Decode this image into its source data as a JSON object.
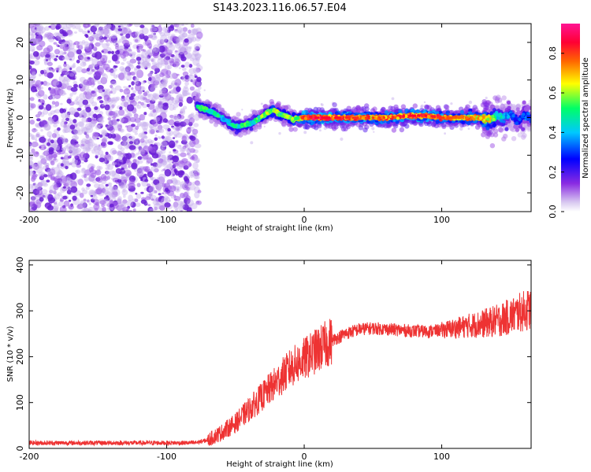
{
  "title": "S143.2023.116.06.57.E04",
  "colors": {
    "snr_line": "#ee3333",
    "spectrogram_scatter": "#7a2be0",
    "colormap": [
      "#ffffff",
      "#d8c8f0",
      "#8a2be2",
      "#0000ff",
      "#00c8ff",
      "#00ff66",
      "#ffff00",
      "#ff6600",
      "#ff0033",
      "#ff1493"
    ]
  },
  "chart_data": [
    {
      "type": "heatmap",
      "xlabel": "Height of straight line (km)",
      "ylabel": "Frequency (Hz)",
      "xlim": [
        -200,
        165
      ],
      "ylim": [
        -25,
        25
      ],
      "x_ticks": [
        -200,
        -100,
        0,
        100
      ],
      "y_ticks": [
        -20,
        -10,
        0,
        10,
        20
      ],
      "colorbar": {
        "label": "Normalized spectral amplitude",
        "range": [
          0,
          0.95
        ],
        "ticks": [
          0.0,
          0.2,
          0.4,
          0.6,
          0.8
        ]
      },
      "noise_region_x": [
        -200,
        -76
      ],
      "signal_trace": {
        "x": [
          -78,
          -70,
          -62,
          -56,
          -50,
          -44,
          -38,
          -32,
          -26,
          -22,
          -18,
          -14,
          -8,
          0,
          20,
          40,
          60,
          75,
          90,
          100,
          115,
          125,
          135,
          140,
          145,
          150,
          155,
          160,
          165
        ],
        "freq": [
          3,
          2,
          0.5,
          -1,
          -2.5,
          -2,
          -1.5,
          0,
          1.5,
          2,
          1,
          0.5,
          -0.5,
          0,
          0,
          0,
          0,
          0.5,
          0.5,
          0,
          0,
          0,
          -0.5,
          0.5,
          0,
          1,
          -1,
          0.5,
          0
        ],
        "amplitude": [
          0.5,
          0.55,
          0.5,
          0.45,
          0.5,
          0.55,
          0.5,
          0.6,
          0.6,
          0.65,
          0.6,
          0.6,
          0.6,
          0.85,
          0.85,
          0.8,
          0.8,
          0.85,
          0.85,
          0.8,
          0.75,
          0.75,
          0.7,
          0.5,
          0.45,
          0.35,
          0.3,
          0.35,
          0.3
        ]
      }
    },
    {
      "type": "line",
      "xlabel": "Height of straight line (km)",
      "ylabel": "SNR (10 * v/v)",
      "xlim": [
        -200,
        165
      ],
      "ylim": [
        0,
        410
      ],
      "x_ticks": [
        -200,
        -100,
        0,
        100
      ],
      "y_ticks": [
        0,
        100,
        200,
        300,
        400
      ],
      "series": [
        {
          "x": [
            -200,
            -150,
            -100,
            -80,
            -70,
            -60,
            -50,
            -40,
            -30,
            -20,
            -10,
            0,
            10,
            20,
            30,
            40,
            50,
            60,
            70,
            80,
            90,
            100,
            110,
            120,
            130,
            140,
            150,
            160,
            165
          ],
          "values": [
            12,
            12,
            12,
            12,
            18,
            35,
            55,
            85,
            115,
            145,
            175,
            195,
            215,
            235,
            250,
            260,
            262,
            260,
            258,
            256,
            255,
            258,
            262,
            268,
            272,
            278,
            288,
            300,
            305
          ]
        }
      ]
    }
  ]
}
